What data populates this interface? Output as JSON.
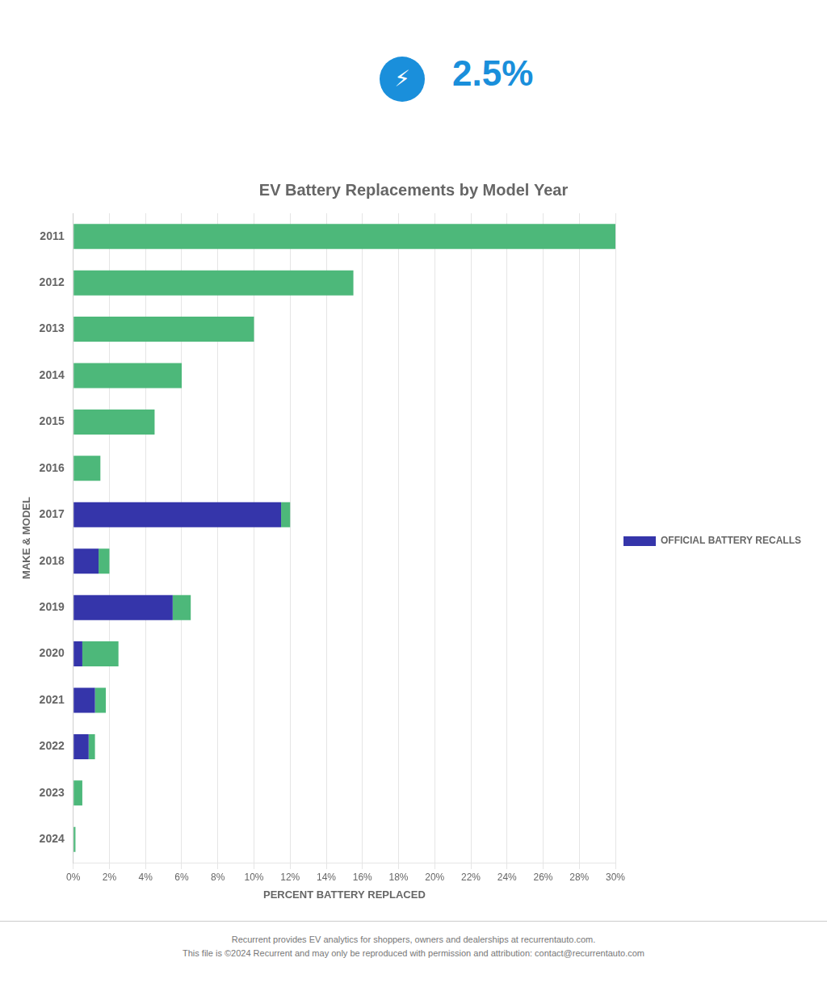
{
  "chart_data": {
    "type": "bar",
    "orientation": "horizontal",
    "stacked": true,
    "title": "EV Battery Replacements by Model Year",
    "xlabel": "PERCENT BATTERY REPLACED",
    "ylabel": "MAKE & MODEL",
    "categories": [
      "2011",
      "2012",
      "2013",
      "2014",
      "2015",
      "2016",
      "2017",
      "2018",
      "2019",
      "2020",
      "2021",
      "2022",
      "2023",
      "2024"
    ],
    "series": [
      {
        "name": "OFFICIAL BATTERY RECALLS",
        "color": "#3535aa",
        "values": [
          0.0,
          0.0,
          0.0,
          0.0,
          0.0,
          0.0,
          11.5,
          1.4,
          5.5,
          0.5,
          1.2,
          0.85,
          0.0,
          0.0
        ]
      },
      {
        "color": "#4db87a",
        "values": [
          30.0,
          15.5,
          10.0,
          6.0,
          4.5,
          1.5,
          0.5,
          0.6,
          1.0,
          2.0,
          0.6,
          0.35,
          0.5,
          0.12
        ]
      }
    ],
    "xlim": [
      0,
      30
    ],
    "xticks": [
      {
        "value": 0,
        "label": "0%"
      },
      {
        "value": 2,
        "label": "2%"
      },
      {
        "value": 4,
        "label": "4%"
      },
      {
        "value": 6,
        "label": "6%"
      },
      {
        "value": 8,
        "label": "8%"
      },
      {
        "value": 10,
        "label": "10%"
      },
      {
        "value": 12,
        "label": "12%"
      },
      {
        "value": 14,
        "label": "14%"
      },
      {
        "value": 16,
        "label": "16%"
      },
      {
        "value": 18,
        "label": "18%"
      },
      {
        "value": 20,
        "label": "20%"
      },
      {
        "value": 22,
        "label": "22%"
      },
      {
        "value": 24,
        "label": "24%"
      },
      {
        "value": 26,
        "label": "26%"
      },
      {
        "value": 28,
        "label": "28%"
      },
      {
        "value": 30,
        "label": "30%"
      }
    ],
    "grid": true,
    "legend": "right",
    "annotations": [
      "⚡",
      "2.5%"
    ],
    "footer": [
      "Recurrent provides EV analytics for shoppers, owners and dealerships at recurrentauto.com.",
      "This file is ©2024 Recurrent and may only be reproduced with permission and attribution: contact@recurrentauto.com"
    ]
  }
}
